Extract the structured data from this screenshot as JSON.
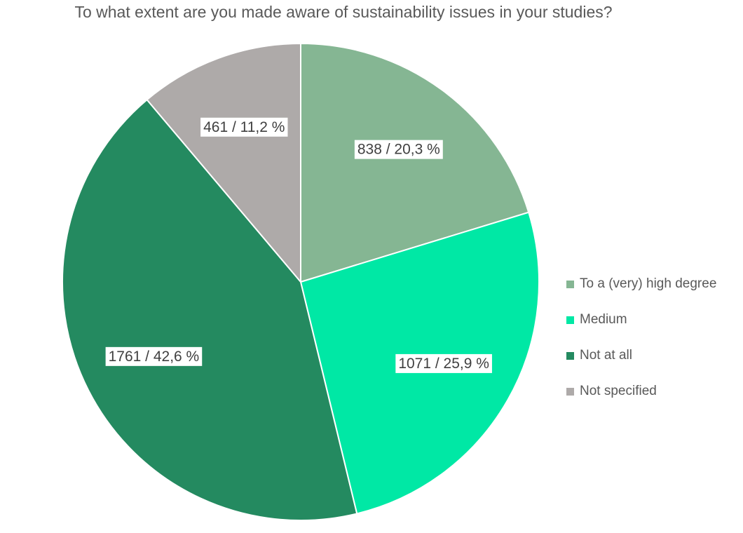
{
  "chart_data": {
    "type": "pie",
    "title": "To what extent are you made aware of sustainability issues in your studies?",
    "slices": [
      {
        "label": "To a (very) high degree",
        "value": 838,
        "percent": 20.3,
        "data_label": "838 / 20,3 %",
        "color": "#85b693"
      },
      {
        "label": "Medium",
        "value": 1071,
        "percent": 25.9,
        "data_label": "1071 / 25,9 %",
        "color": "#00e8a5"
      },
      {
        "label": "Not at all",
        "value": 1761,
        "percent": 42.6,
        "data_label": "1761 / 42,6 %",
        "color": "#248a60"
      },
      {
        "label": "Not specified",
        "value": 461,
        "percent": 11.2,
        "data_label": "461 / 11,2 %",
        "color": "#aeaaa9"
      }
    ],
    "start_angle": "12 o'clock, clockwise",
    "legend_position": "right"
  }
}
